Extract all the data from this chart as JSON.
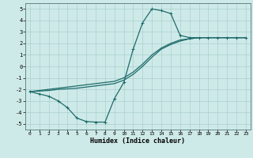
{
  "xlabel": "Humidex (Indice chaleur)",
  "bg_color": "#ceeae8",
  "line_color": "#1e6b6b",
  "grid_color": "#aacfcf",
  "xlim": [
    -0.5,
    23.5
  ],
  "ylim": [
    -5.5,
    5.5
  ],
  "xticks": [
    0,
    1,
    2,
    3,
    4,
    5,
    6,
    7,
    8,
    9,
    10,
    11,
    12,
    13,
    14,
    15,
    16,
    17,
    18,
    19,
    20,
    21,
    22,
    23
  ],
  "yticks": [
    -5,
    -4,
    -3,
    -2,
    -1,
    0,
    1,
    2,
    3,
    4,
    5
  ],
  "series": [
    {
      "x": [
        0,
        1,
        2,
        3,
        4,
        5,
        6,
        7,
        8,
        9,
        10,
        11,
        12,
        13,
        14,
        15,
        16,
        17,
        18,
        19,
        20,
        21,
        22,
        23
      ],
      "y": [
        -2.2,
        -2.4,
        -2.6,
        -3.0,
        -3.6,
        -4.5,
        -4.8,
        -4.85,
        -4.85,
        -2.8,
        -1.4,
        1.5,
        3.8,
        5.0,
        4.85,
        4.6,
        2.7,
        2.5,
        2.5,
        2.5,
        2.5,
        2.5,
        2.5,
        2.5
      ],
      "marker": "+",
      "lw": 0.9
    },
    {
      "x": [
        0,
        1,
        2,
        3,
        4,
        5,
        6,
        7,
        8,
        9,
        10,
        11,
        12,
        13,
        14,
        15,
        16,
        17,
        18,
        19,
        20,
        21,
        22,
        23
      ],
      "y": [
        -2.2,
        -2.1,
        -2.0,
        -1.9,
        -1.8,
        -1.7,
        -1.6,
        -1.5,
        -1.4,
        -1.3,
        -1.0,
        -0.5,
        0.2,
        1.0,
        1.6,
        2.0,
        2.3,
        2.4,
        2.5,
        2.5,
        2.5,
        2.5,
        2.5,
        2.5
      ],
      "marker": null,
      "lw": 0.9
    },
    {
      "x": [
        0,
        1,
        2,
        3,
        4,
        5,
        6,
        7,
        8,
        9,
        10,
        11,
        12,
        13,
        14,
        15,
        16,
        17,
        18,
        19,
        20,
        21,
        22,
        23
      ],
      "y": [
        -2.2,
        -2.15,
        -2.1,
        -2.0,
        -1.95,
        -1.9,
        -1.8,
        -1.7,
        -1.6,
        -1.5,
        -1.2,
        -0.7,
        0.0,
        0.8,
        1.5,
        1.9,
        2.2,
        2.4,
        2.5,
        2.5,
        2.5,
        2.5,
        2.5,
        2.5
      ],
      "marker": null,
      "lw": 0.9
    }
  ]
}
